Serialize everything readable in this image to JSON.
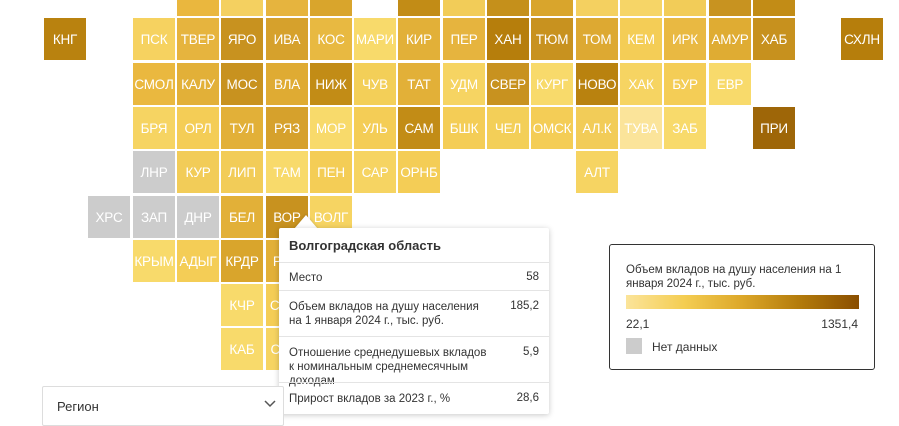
{
  "map": {
    "tiles": [
      {
        "label": "",
        "col": 4,
        "row": 0,
        "color": "#eab73e"
      },
      {
        "label": "",
        "col": 5,
        "row": 0,
        "color": "#f4d060"
      },
      {
        "label": "",
        "col": 6,
        "row": 0,
        "color": "#e6b43e"
      },
      {
        "label": "",
        "col": 7,
        "row": 0,
        "color": "#d9a52c"
      },
      {
        "label": "",
        "col": 9,
        "row": 0,
        "color": "#c28c16"
      },
      {
        "label": "",
        "col": 10,
        "row": 0,
        "color": "#f2cc58"
      },
      {
        "label": "",
        "col": 11,
        "row": 0,
        "color": "#c5901b"
      },
      {
        "label": "",
        "col": 12,
        "row": 0,
        "color": "#d9a52c"
      },
      {
        "label": "",
        "col": 13,
        "row": 0,
        "color": "#f4d060"
      },
      {
        "label": "",
        "col": 14,
        "row": 0,
        "color": "#f6d567"
      },
      {
        "label": "",
        "col": 15,
        "row": 0,
        "color": "#f2cc58"
      },
      {
        "label": "",
        "col": 16,
        "row": 0,
        "color": "#c89320"
      },
      {
        "label": "",
        "col": 17,
        "row": 0,
        "color": "#c28c16"
      },
      {
        "label": "КНГ",
        "col": 1,
        "row": 1,
        "color": "#b9820f"
      },
      {
        "label": "ПСК",
        "col": 3,
        "row": 1,
        "color": "#f6d260"
      },
      {
        "label": "ТВЕР",
        "col": 4,
        "row": 1,
        "color": "#e6b43e"
      },
      {
        "label": "ЯРО",
        "col": 5,
        "row": 1,
        "color": "#c8921f"
      },
      {
        "label": "ИВА",
        "col": 6,
        "row": 1,
        "color": "#d6a12c"
      },
      {
        "label": "КОС",
        "col": 7,
        "row": 1,
        "color": "#e8b941"
      },
      {
        "label": "МАРИ",
        "col": 8,
        "row": 1,
        "color": "#f8da6b"
      },
      {
        "label": "КИР",
        "col": 9,
        "row": 1,
        "color": "#e2b038"
      },
      {
        "label": "ПЕР",
        "col": 10,
        "row": 1,
        "color": "#e6b43e"
      },
      {
        "label": "ХАН",
        "col": 11,
        "row": 1,
        "color": "#b67e0c"
      },
      {
        "label": "ТЮМ",
        "col": 12,
        "row": 1,
        "color": "#c8921f"
      },
      {
        "label": "ТОМ",
        "col": 13,
        "row": 1,
        "color": "#dda932"
      },
      {
        "label": "КЕМ",
        "col": 14,
        "row": 1,
        "color": "#f4cd56"
      },
      {
        "label": "ИРК",
        "col": 15,
        "row": 1,
        "color": "#e9b942"
      },
      {
        "label": "АМУР",
        "col": 16,
        "row": 1,
        "color": "#dfac33"
      },
      {
        "label": "ХАБ",
        "col": 17,
        "row": 1,
        "color": "#c7911e"
      },
      {
        "label": "СХЛН",
        "col": 19,
        "row": 1,
        "color": "#b67e0c"
      },
      {
        "label": "СМОЛ",
        "col": 3,
        "row": 2,
        "color": "#eab83f"
      },
      {
        "label": "КАЛУ",
        "col": 4,
        "row": 2,
        "color": "#e2b038"
      },
      {
        "label": "МОС",
        "col": 5,
        "row": 2,
        "color": "#c8921f"
      },
      {
        "label": "ВЛА",
        "col": 6,
        "row": 2,
        "color": "#dfab33"
      },
      {
        "label": "НИЖ",
        "col": 7,
        "row": 2,
        "color": "#c28c16"
      },
      {
        "label": "ЧУВ",
        "col": 8,
        "row": 2,
        "color": "#f3cf58"
      },
      {
        "label": "ТАТ",
        "col": 9,
        "row": 2,
        "color": "#e2b038"
      },
      {
        "label": "УДМ",
        "col": 10,
        "row": 2,
        "color": "#f6d462"
      },
      {
        "label": "СВЕР",
        "col": 11,
        "row": 2,
        "color": "#c8921f"
      },
      {
        "label": "КУРГ",
        "col": 12,
        "row": 2,
        "color": "#f8da6b"
      },
      {
        "label": "НОВО",
        "col": 13,
        "row": 2,
        "color": "#b9820f"
      },
      {
        "label": "ХАК",
        "col": 14,
        "row": 2,
        "color": "#f6d462"
      },
      {
        "label": "БУР",
        "col": 15,
        "row": 2,
        "color": "#f4cd56"
      },
      {
        "label": "ЕВР",
        "col": 16,
        "row": 2,
        "color": "#f8da6b"
      },
      {
        "label": "БРЯ",
        "col": 3,
        "row": 3,
        "color": "#f6d462"
      },
      {
        "label": "ОРЛ",
        "col": 4,
        "row": 3,
        "color": "#f4cd56"
      },
      {
        "label": "ТУЛ",
        "col": 5,
        "row": 3,
        "color": "#e2b038"
      },
      {
        "label": "РЯЗ",
        "col": 6,
        "row": 3,
        "color": "#d6a12c"
      },
      {
        "label": "МОР",
        "col": 7,
        "row": 3,
        "color": "#f8da6b"
      },
      {
        "label": "УЛЬ",
        "col": 8,
        "row": 3,
        "color": "#f4cd56"
      },
      {
        "label": "САМ",
        "col": 9,
        "row": 3,
        "color": "#c28c16"
      },
      {
        "label": "БШК",
        "col": 10,
        "row": 3,
        "color": "#f4cd56"
      },
      {
        "label": "ЧЕЛ",
        "col": 11,
        "row": 3,
        "color": "#f3cf58"
      },
      {
        "label": "ОМСК",
        "col": 12,
        "row": 3,
        "color": "#f4cd56"
      },
      {
        "label": "АЛ.К",
        "col": 13,
        "row": 3,
        "color": "#f2cc58"
      },
      {
        "label": "ТУВА",
        "col": 14,
        "row": 3,
        "color": "#fbe49a"
      },
      {
        "label": "ЗАБ",
        "col": 15,
        "row": 3,
        "color": "#f8da6b"
      },
      {
        "label": "ПРИ",
        "col": 17,
        "row": 3,
        "color": "#9e6608"
      },
      {
        "label": "ЛНР",
        "col": 3,
        "row": 4,
        "color": "#cccccc"
      },
      {
        "label": "КУР",
        "col": 4,
        "row": 4,
        "color": "#f2cc58"
      },
      {
        "label": "ЛИП",
        "col": 5,
        "row": 4,
        "color": "#f2cc58"
      },
      {
        "label": "ТАМ",
        "col": 6,
        "row": 4,
        "color": "#f8da6b"
      },
      {
        "label": "ПЕН",
        "col": 7,
        "row": 4,
        "color": "#f4cd56"
      },
      {
        "label": "САР",
        "col": 8,
        "row": 4,
        "color": "#f6d462"
      },
      {
        "label": "ОРНБ",
        "col": 9,
        "row": 4,
        "color": "#f4cd56"
      },
      {
        "label": "АЛТ",
        "col": 13,
        "row": 4,
        "color": "#f6d462"
      },
      {
        "label": "ХРС",
        "col": 2,
        "row": 5,
        "color": "#cccccc"
      },
      {
        "label": "ЗАП",
        "col": 3,
        "row": 5,
        "color": "#cccccc"
      },
      {
        "label": "ДНР",
        "col": 4,
        "row": 5,
        "color": "#cccccc"
      },
      {
        "label": "БЕЛ",
        "col": 5,
        "row": 5,
        "color": "#e2b038"
      },
      {
        "label": "ВОР",
        "col": 6,
        "row": 5,
        "color": "#c8921f"
      },
      {
        "label": "ВОЛГ",
        "col": 7,
        "row": 5,
        "color": "#f6d462",
        "highlighted": true
      },
      {
        "label": "КРЫМ",
        "col": 3,
        "row": 6,
        "color": "#f8da6b"
      },
      {
        "label": "АДЫГ",
        "col": 4,
        "row": 6,
        "color": "#f4cd56"
      },
      {
        "label": "КРДР",
        "col": 5,
        "row": 6,
        "color": "#d9a52c"
      },
      {
        "label": "РОС",
        "col": 6,
        "row": 6,
        "color": "#e2b038"
      },
      {
        "label": "КЧР",
        "col": 5,
        "row": 7,
        "color": "#f8da6b"
      },
      {
        "label": "СТАВ",
        "col": 6,
        "row": 7,
        "color": "#f4cd56"
      },
      {
        "label": "КАБ",
        "col": 5,
        "row": 8,
        "color": "#f8da6b"
      },
      {
        "label": "С.ОС",
        "col": 6,
        "row": 8,
        "color": "#f6d462"
      }
    ]
  },
  "tooltip": {
    "title": "Волгоградская область",
    "rows": [
      {
        "label": "Место",
        "value": "58"
      },
      {
        "label": "Объем вкладов на душу населения на 1 января 2024 г., тыс. руб.",
        "value": "185,2"
      },
      {
        "label": "Отношение среднедушевых вкладов к номинальным среднемесячным доходам",
        "value": "5,9"
      },
      {
        "label": "Прирост вкладов за 2023 г., %",
        "value": "28,6"
      }
    ]
  },
  "legend": {
    "title": "Объем вкладов на душу населения на 1 января 2024 г., тыс. руб.",
    "min": "22,1",
    "max": "1351,4",
    "no_data": "Нет данных"
  },
  "region_select": {
    "value": "Регион"
  }
}
